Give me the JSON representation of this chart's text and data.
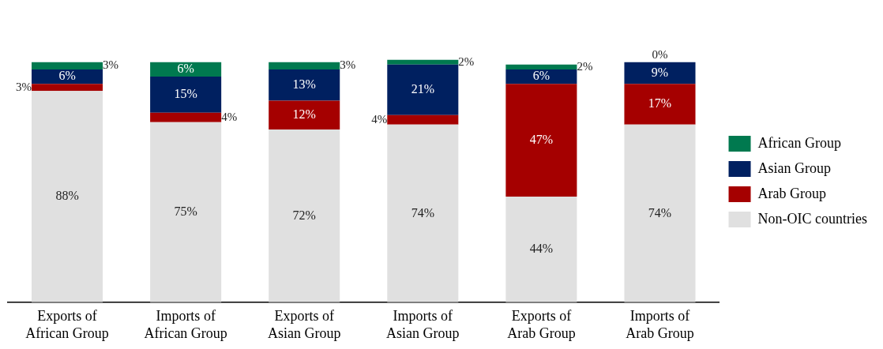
{
  "chart_data": {
    "type": "bar",
    "stacked": true,
    "categories": [
      "Exports of\nAfrican Group",
      "Imports of\nAfrican Group",
      "Exports of\nAsian Group",
      "Imports of\nAsian Group",
      "Exports of\nArab Group",
      "Imports of\nArab Group"
    ],
    "series": [
      {
        "name": "Non-OIC countries",
        "color": "#e0e0e0",
        "values": [
          88,
          75,
          72,
          74,
          44,
          74
        ],
        "value_labels": [
          "88%",
          "75%",
          "72%",
          "74%",
          "44%",
          "74%"
        ]
      },
      {
        "name": "Arab Group",
        "color": "#a50000",
        "values": [
          3,
          4,
          12,
          4,
          47,
          17
        ],
        "value_labels": [
          "3%",
          "4%",
          "12%",
          "4%",
          "47%",
          "17%"
        ]
      },
      {
        "name": "Asian Group",
        "color": "#002060",
        "values": [
          6,
          15,
          13,
          21,
          6,
          9
        ],
        "value_labels": [
          "6%",
          "15%",
          "13%",
          "21%",
          "6%",
          "9%"
        ]
      },
      {
        "name": "African Group",
        "color": "#00794f",
        "values": [
          3,
          6,
          3,
          2,
          2,
          0
        ],
        "value_labels": [
          "3%",
          "6%",
          "3%",
          "2%",
          "2%",
          "0%"
        ]
      }
    ],
    "legend": "right",
    "grid": false,
    "tick_labels": "x"
  }
}
